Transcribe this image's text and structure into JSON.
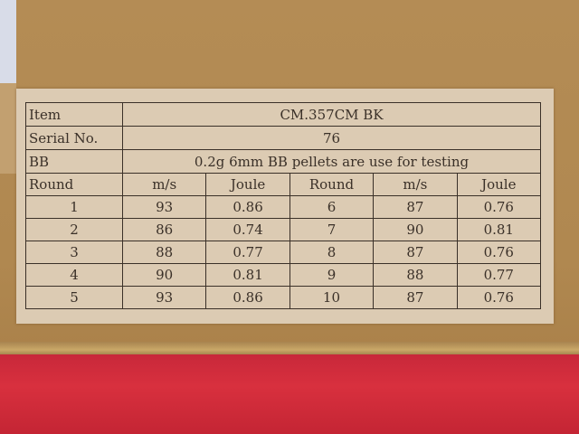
{
  "label": {
    "item_label": "Item",
    "item_value": "CM.357CM BK",
    "serial_label": "Serial No.",
    "serial_value": "76",
    "bb_label": "BB",
    "bb_value": "0.2g 6mm BB pellets are use for testing",
    "headers": [
      "Round",
      "m/s",
      "Joule",
      "Round",
      "m/s",
      "Joule"
    ],
    "rows": [
      [
        "1",
        "93",
        "0.86",
        "6",
        "87",
        "0.76"
      ],
      [
        "2",
        "86",
        "0.74",
        "7",
        "90",
        "0.81"
      ],
      [
        "3",
        "88",
        "0.77",
        "8",
        "87",
        "0.76"
      ],
      [
        "4",
        "90",
        "0.81",
        "9",
        "88",
        "0.77"
      ],
      [
        "5",
        "93",
        "0.86",
        "10",
        "87",
        "0.76"
      ]
    ]
  }
}
